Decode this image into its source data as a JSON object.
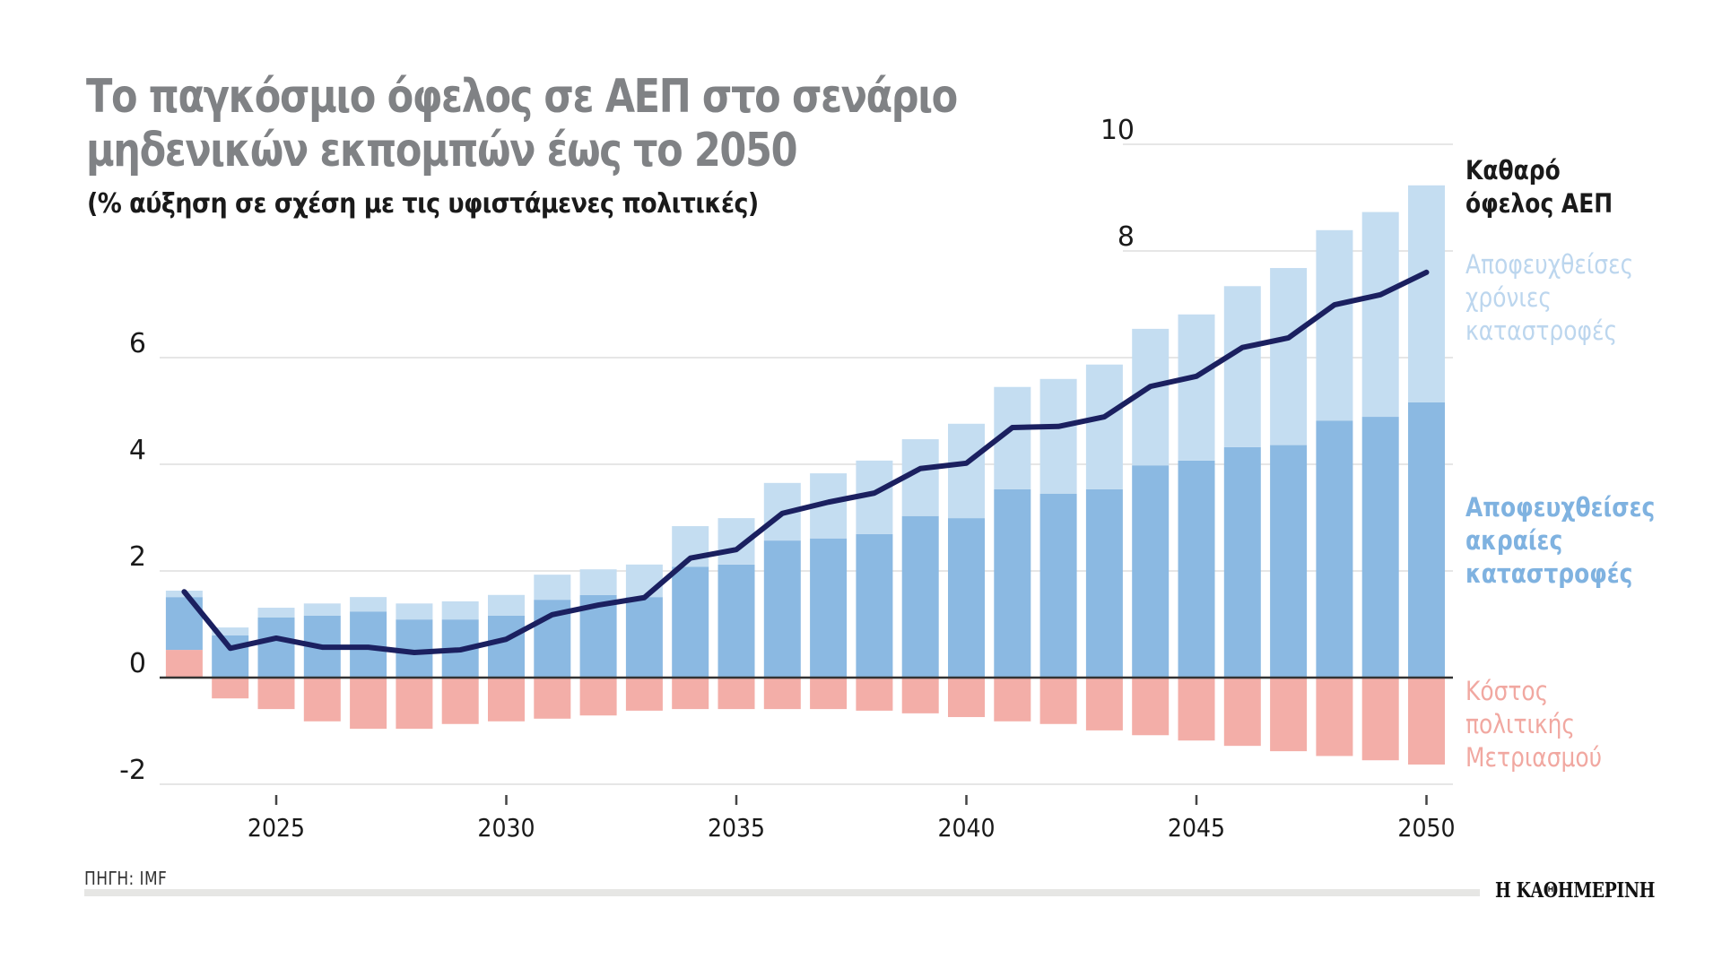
{
  "header": {
    "title_line1": "Το παγκόσμιο όφελος σε ΑΕΠ στο σενάριο",
    "title_line2": "μηδενικών εκπομπών έως το 2050",
    "subtitle": "(% αύξηση σε σχέση με τις υφιστάμενες πολιτικές)"
  },
  "legend": {
    "net": [
      "Καθαρό",
      "όφελος ΑΕΠ"
    ],
    "chronic": [
      "Αποφευχθείσες",
      "χρόνιες",
      "καταστροφές"
    ],
    "extreme": [
      "Αποφευχθείσες",
      "ακραίες",
      "καταστροφές"
    ],
    "cost": [
      "Κόστος",
      "πολιτικής",
      "Μετριασμού"
    ]
  },
  "footer": {
    "source": "ΠΗΓΗ: IMF",
    "logo": "Η ΚΑΘΗΜΕΡΙΝΗ"
  },
  "colors": {
    "chronic": "#c4ddf1",
    "extreme": "#8bb9e2",
    "cost": "#f3aea8",
    "net_line": "#1b2060",
    "title": "#808285",
    "grid": "#e6e6e6",
    "zero_line": "#333333"
  },
  "chart_data": {
    "type": "bar",
    "stacked": true,
    "title": "Το παγκόσμιο όφελος σε ΑΕΠ στο σενάριο μηδενικών εκπομπών έως το 2050",
    "subtitle": "(% αύξηση σε σχέση με τις υφιστάμενες πολιτικές)",
    "xlabel": "",
    "ylabel": "",
    "x": [
      2023,
      2024,
      2025,
      2026,
      2027,
      2028,
      2029,
      2030,
      2031,
      2032,
      2033,
      2034,
      2035,
      2036,
      2037,
      2038,
      2039,
      2040,
      2041,
      2042,
      2043,
      2044,
      2045,
      2046,
      2047,
      2048,
      2049,
      2050
    ],
    "x_ticks": [
      2025,
      2030,
      2035,
      2040,
      2045,
      2050
    ],
    "x_tick_labels": [
      "2025",
      "2030",
      "2035",
      "2040",
      "2045",
      "2050"
    ],
    "ylim": [
      -2,
      10
    ],
    "y_ticks": [
      -2,
      0,
      2,
      4,
      6,
      8,
      10
    ],
    "y_tick_labels": [
      "-2",
      "0",
      "2",
      "4",
      "6",
      "8",
      "10"
    ],
    "grid": true,
    "legend_placement": "right",
    "series": [
      {
        "name": "Κόστος πολιτικής Μετριασμού",
        "kind": "bar",
        "values": [
          0.52,
          -0.39,
          -0.59,
          -0.82,
          -0.96,
          -0.96,
          -0.87,
          -0.82,
          -0.77,
          -0.71,
          -0.62,
          -0.59,
          -0.59,
          -0.59,
          -0.59,
          -0.62,
          -0.67,
          -0.74,
          -0.82,
          -0.87,
          -0.99,
          -1.08,
          -1.18,
          -1.28,
          -1.38,
          -1.47,
          -1.55,
          -1.63
        ]
      },
      {
        "name": "Αποφευχθείσες ακραίες καταστροφές",
        "kind": "bar",
        "values": [
          0.99,
          0.79,
          1.13,
          1.16,
          1.24,
          1.09,
          1.09,
          1.16,
          1.46,
          1.55,
          1.51,
          2.08,
          2.12,
          2.57,
          2.61,
          2.69,
          3.03,
          2.99,
          3.53,
          3.45,
          3.53,
          3.98,
          4.07,
          4.32,
          4.36,
          4.82,
          4.89,
          5.16
        ]
      },
      {
        "name": "Αποφευχθείσες χρόνιες καταστροφές",
        "kind": "bar",
        "values": [
          0.12,
          0.15,
          0.18,
          0.23,
          0.27,
          0.3,
          0.34,
          0.39,
          0.47,
          0.48,
          0.61,
          0.76,
          0.87,
          1.08,
          1.22,
          1.38,
          1.44,
          1.77,
          1.92,
          2.15,
          2.34,
          2.56,
          2.74,
          3.02,
          3.32,
          3.57,
          3.84,
          4.07
        ]
      },
      {
        "name": "Καθαρό όφελος ΑΕΠ",
        "kind": "line",
        "values": [
          1.61,
          0.55,
          0.74,
          0.57,
          0.57,
          0.47,
          0.52,
          0.72,
          1.18,
          1.36,
          1.5,
          2.24,
          2.4,
          3.08,
          3.29,
          3.46,
          3.92,
          4.02,
          4.69,
          4.71,
          4.89,
          5.46,
          5.65,
          6.19,
          6.37,
          6.99,
          7.18,
          7.6
        ]
      }
    ]
  }
}
